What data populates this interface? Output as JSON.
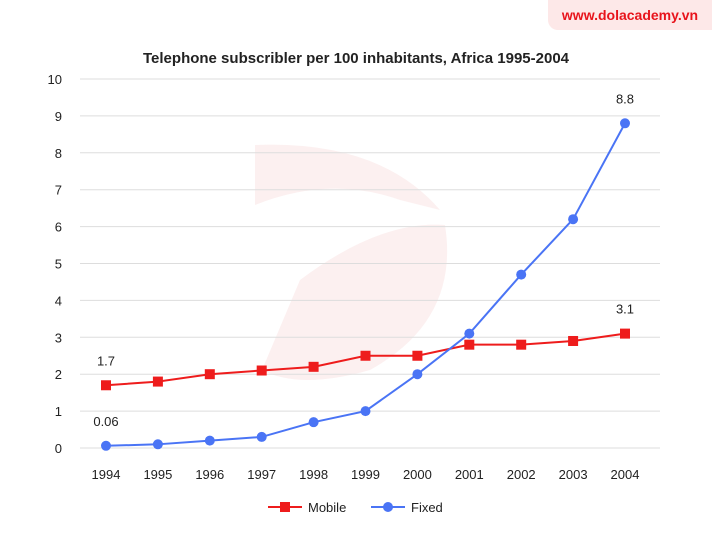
{
  "brand": {
    "text": "www.dolacademy.vn",
    "color": "#e8141c"
  },
  "chart_data": {
    "type": "line",
    "title": "Telephone subscribler per 100 inhabitants, Africa 1995-2004",
    "xlabel": "",
    "ylabel": "",
    "categories": [
      "1994",
      "1995",
      "1996",
      "1997",
      "1998",
      "1999",
      "2000",
      "2001",
      "2002",
      "2003",
      "2004"
    ],
    "ylim": [
      0,
      10
    ],
    "yticks": [
      0,
      1,
      2,
      3,
      4,
      5,
      6,
      7,
      8,
      9,
      10
    ],
    "grid": true,
    "legend": "bottom",
    "series": [
      {
        "name": "Mobile",
        "color": "#ee1c1c",
        "marker": "square",
        "values": [
          1.7,
          1.8,
          2.0,
          2.1,
          2.2,
          2.5,
          2.5,
          2.8,
          2.8,
          2.9,
          3.1
        ]
      },
      {
        "name": "Fixed",
        "color": "#4a74f5",
        "marker": "circle",
        "values": [
          0.06,
          0.1,
          0.2,
          0.3,
          0.7,
          1.0,
          2.0,
          3.1,
          4.7,
          6.2,
          8.8
        ]
      }
    ],
    "annotations": [
      {
        "series": "Mobile",
        "x": "1994",
        "text": "1.7"
      },
      {
        "series": "Mobile",
        "x": "2004",
        "text": "3.1"
      },
      {
        "series": "Fixed",
        "x": "1994",
        "text": "0.06"
      },
      {
        "series": "Fixed",
        "x": "2004",
        "text": "8.8"
      }
    ]
  }
}
